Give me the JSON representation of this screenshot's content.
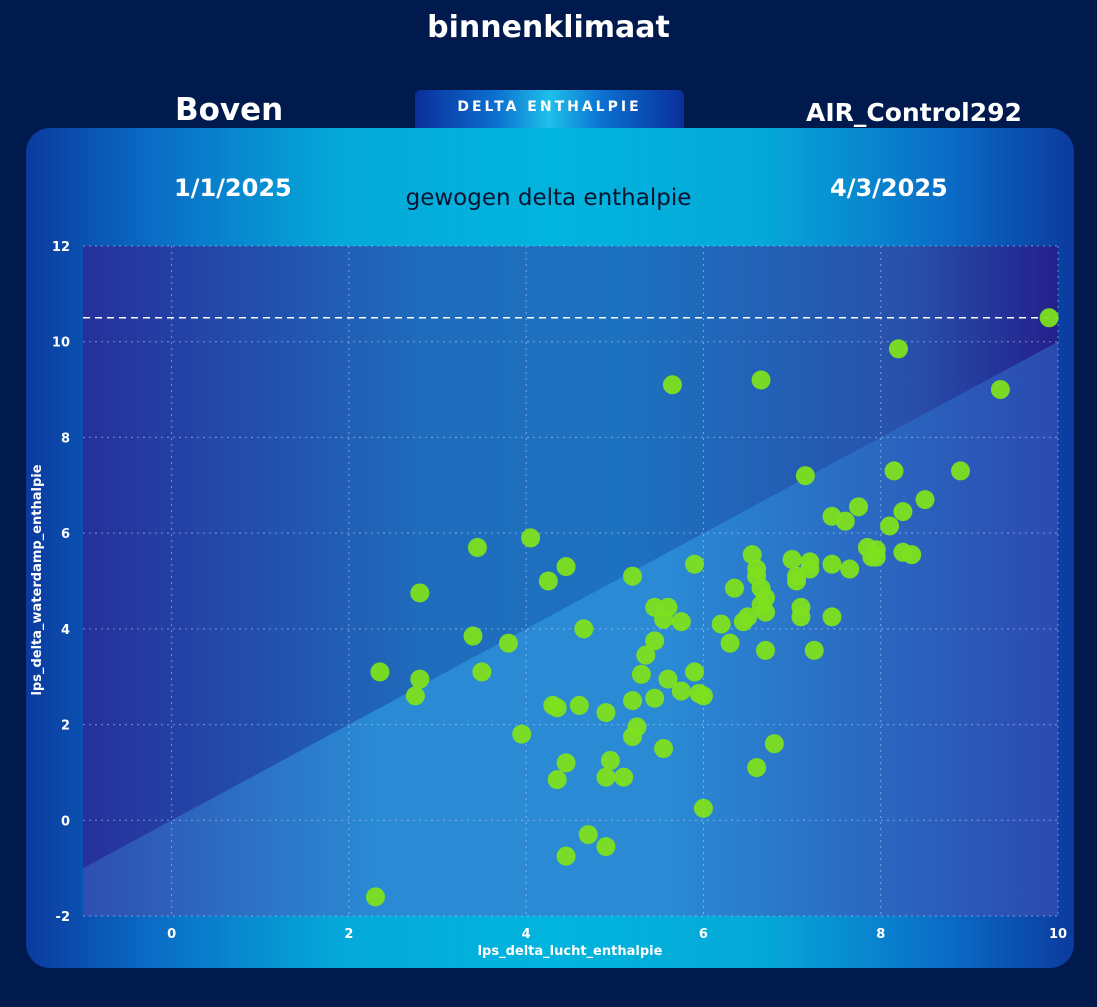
{
  "page": {
    "title": "binnenklimaat",
    "left_label": "Boven",
    "right_label": "AIR_Control292",
    "tab_label": "DELTA ENTHALPIE",
    "start_date": "1/1/2025",
    "end_date": "4/3/2025"
  },
  "colors": {
    "background": "#001a4d",
    "point": "#7ee01e",
    "plot_dark": "#23289a",
    "plot_mid": "#1f74c2",
    "lower_region": "#2a8ad4"
  },
  "chart_data": {
    "type": "scatter",
    "title": "gewogen delta enthalpie",
    "xlabel": "lps_delta_lucht_enthalpie",
    "ylabel": "lps_delta_waterdamp_enthalpie",
    "xlim": [
      -1,
      10
    ],
    "ylim": [
      -2,
      12
    ],
    "xticks": [
      0,
      2,
      4,
      6,
      8,
      10
    ],
    "yticks": [
      -2,
      0,
      2,
      4,
      6,
      8,
      10,
      12
    ],
    "grid": true,
    "reference_line_y": 10.5,
    "diagonal": "y = x, area below shaded",
    "points": [
      [
        2.3,
        -1.6
      ],
      [
        2.35,
        3.1
      ],
      [
        2.75,
        2.6
      ],
      [
        2.8,
        2.95
      ],
      [
        2.8,
        4.75
      ],
      [
        3.4,
        3.85
      ],
      [
        3.45,
        5.7
      ],
      [
        3.5,
        3.1
      ],
      [
        3.8,
        3.7
      ],
      [
        3.95,
        1.8
      ],
      [
        4.05,
        5.9
      ],
      [
        4.25,
        5.0
      ],
      [
        4.3,
        2.4
      ],
      [
        4.35,
        2.35
      ],
      [
        4.35,
        0.85
      ],
      [
        4.45,
        -0.75
      ],
      [
        4.45,
        1.2
      ],
      [
        4.45,
        5.3
      ],
      [
        4.6,
        2.4
      ],
      [
        4.65,
        4.0
      ],
      [
        4.7,
        -0.3
      ],
      [
        4.9,
        2.25
      ],
      [
        4.9,
        0.9
      ],
      [
        4.9,
        -0.55
      ],
      [
        4.95,
        1.25
      ],
      [
        5.1,
        0.9
      ],
      [
        5.2,
        1.75
      ],
      [
        5.2,
        2.5
      ],
      [
        5.2,
        5.1
      ],
      [
        5.25,
        1.95
      ],
      [
        5.3,
        3.05
      ],
      [
        5.35,
        3.45
      ],
      [
        5.45,
        4.45
      ],
      [
        5.45,
        3.75
      ],
      [
        5.45,
        2.55
      ],
      [
        5.55,
        4.2
      ],
      [
        5.55,
        1.5
      ],
      [
        5.6,
        4.45
      ],
      [
        5.6,
        2.95
      ],
      [
        5.65,
        9.1
      ],
      [
        5.75,
        4.15
      ],
      [
        5.75,
        2.7
      ],
      [
        5.9,
        5.35
      ],
      [
        5.9,
        3.1
      ],
      [
        5.95,
        2.65
      ],
      [
        6.0,
        2.6
      ],
      [
        6.0,
        0.25
      ],
      [
        6.2,
        4.1
      ],
      [
        6.3,
        3.7
      ],
      [
        6.35,
        4.85
      ],
      [
        6.45,
        4.15
      ],
      [
        6.5,
        4.25
      ],
      [
        6.55,
        5.55
      ],
      [
        6.6,
        5.25
      ],
      [
        6.6,
        5.1
      ],
      [
        6.6,
        1.1
      ],
      [
        6.65,
        4.85
      ],
      [
        6.65,
        4.5
      ],
      [
        6.65,
        9.2
      ],
      [
        6.7,
        4.35
      ],
      [
        6.7,
        3.55
      ],
      [
        6.7,
        4.65
      ],
      [
        6.8,
        1.6
      ],
      [
        7.0,
        5.45
      ],
      [
        7.05,
        5.1
      ],
      [
        7.05,
        5.0
      ],
      [
        7.1,
        4.45
      ],
      [
        7.1,
        4.25
      ],
      [
        7.15,
        7.2
      ],
      [
        7.2,
        5.4
      ],
      [
        7.2,
        5.25
      ],
      [
        7.25,
        3.55
      ],
      [
        7.45,
        6.35
      ],
      [
        7.45,
        5.35
      ],
      [
        7.45,
        4.25
      ],
      [
        7.6,
        6.25
      ],
      [
        7.65,
        5.25
      ],
      [
        7.75,
        6.55
      ],
      [
        7.85,
        5.7
      ],
      [
        7.9,
        5.5
      ],
      [
        7.95,
        5.65
      ],
      [
        7.95,
        5.5
      ],
      [
        8.1,
        6.15
      ],
      [
        8.15,
        7.3
      ],
      [
        8.2,
        9.85
      ],
      [
        8.25,
        6.45
      ],
      [
        8.25,
        5.6
      ],
      [
        8.35,
        5.55
      ],
      [
        8.5,
        6.7
      ],
      [
        8.9,
        7.3
      ],
      [
        9.35,
        9.0
      ],
      [
        9.9,
        10.5
      ]
    ]
  }
}
